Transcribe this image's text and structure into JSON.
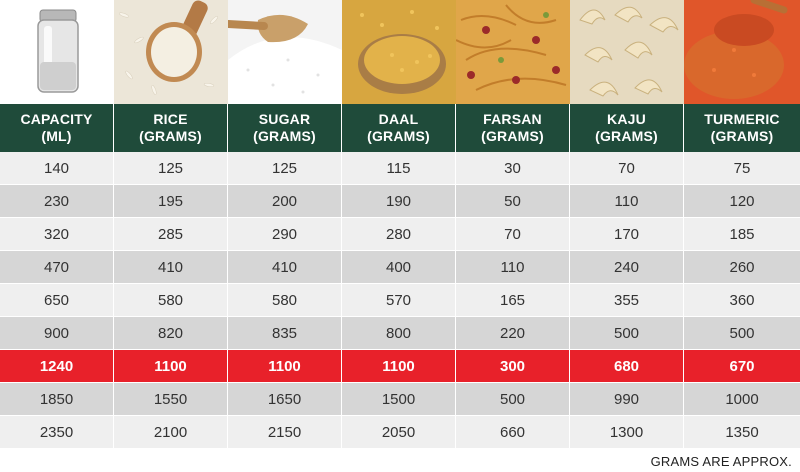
{
  "headers": [
    {
      "line1": "CAPACITY",
      "line2": "(ML)"
    },
    {
      "line1": "RICE",
      "line2": "(GRAMS)"
    },
    {
      "line1": "SUGAR",
      "line2": "(GRAMS)"
    },
    {
      "line1": "DAAL",
      "line2": "(GRAMS)"
    },
    {
      "line1": "FARSAN",
      "line2": "(GRAMS)"
    },
    {
      "line1": "KAJU",
      "line2": "(GRAMS)"
    },
    {
      "line1": "TURMERIC",
      "line2": "(GRAMS)"
    }
  ],
  "rows": [
    [
      "140",
      "125",
      "125",
      "115",
      "30",
      "70",
      "75"
    ],
    [
      "230",
      "195",
      "200",
      "190",
      "50",
      "110",
      "120"
    ],
    [
      "320",
      "285",
      "290",
      "280",
      "70",
      "170",
      "185"
    ],
    [
      "470",
      "410",
      "410",
      "400",
      "110",
      "240",
      "260"
    ],
    [
      "650",
      "580",
      "580",
      "570",
      "165",
      "355",
      "360"
    ],
    [
      "900",
      "820",
      "835",
      "800",
      "220",
      "500",
      "500"
    ],
    [
      "1240",
      "1100",
      "1100",
      "1100",
      "300",
      "680",
      "670"
    ],
    [
      "1850",
      "1550",
      "1650",
      "1500",
      "500",
      "990",
      "1000"
    ],
    [
      "2350",
      "2100",
      "2150",
      "2050",
      "660",
      "1300",
      "1350"
    ]
  ],
  "highlight_row": 6,
  "note": "GRAMS ARE APPROX.",
  "colors": {
    "header_bg": "#1f4b3a",
    "highlight": "#e8212a",
    "row_light": "#efefef",
    "row_dark": "#d6d6d6"
  },
  "photos": [
    "jar-image",
    "rice-image",
    "sugar-image",
    "daal-image",
    "farsan-image",
    "kaju-image",
    "turmeric-image"
  ]
}
